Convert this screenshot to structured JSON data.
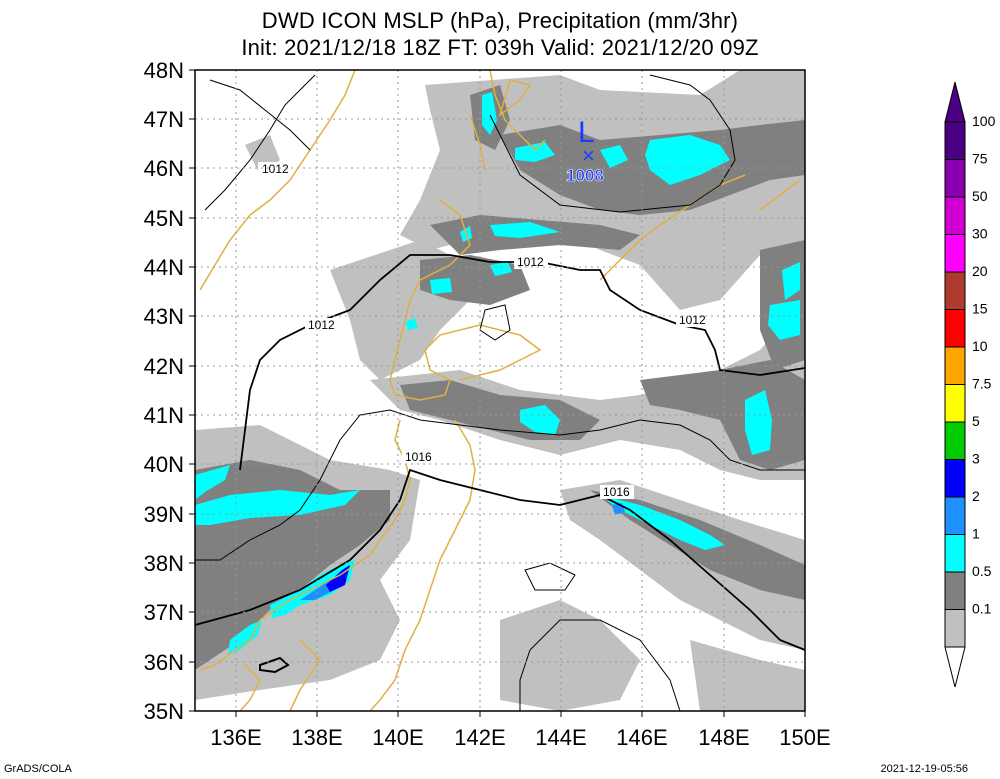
{
  "title": {
    "line1": "DWD ICON MSLP (hPa), Precipitation (mm/3hr)",
    "line2": "Init: 2021/12/18 18Z  FT: 039h  Valid: 2021/12/20 09Z"
  },
  "axes": {
    "lat_labels": [
      "48N",
      "47N",
      "46N",
      "45N",
      "44N",
      "43N",
      "42N",
      "41N",
      "40N",
      "39N",
      "38N",
      "37N",
      "36N",
      "35N"
    ],
    "lon_labels": [
      "136E",
      "138E",
      "140E",
      "142E",
      "144E",
      "146E",
      "148E",
      "150E"
    ]
  },
  "isobar_labels": [
    "1012",
    "1012",
    "1012",
    "1012",
    "1016",
    "1016"
  ],
  "low_center": {
    "letter": "L",
    "marker": "×",
    "value": "1008"
  },
  "colorbar": {
    "levels": [
      "100",
      "75",
      "50",
      "30",
      "20",
      "15",
      "10",
      "7.5",
      "5",
      "3",
      "2",
      "1",
      "0.5",
      "0.1"
    ],
    "colors": [
      "#4b0082",
      "#8a00b0",
      "#d000d0",
      "#ff00ff",
      "#b03a2e",
      "#ff0000",
      "#ffa500",
      "#ffff00",
      "#00cc00",
      "#0000ff",
      "#1e90ff",
      "#00ffff",
      "#808080",
      "#c0c0c0"
    ]
  },
  "footer": {
    "left": "GrADS/COLA",
    "right": "2021-12-19-05:56"
  }
}
